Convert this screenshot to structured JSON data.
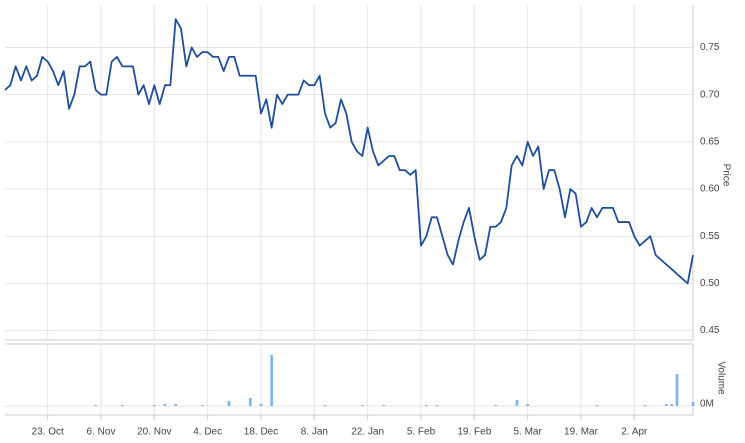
{
  "chart_data": {
    "type": "stock",
    "categories": [
      null,
      null,
      null,
      null,
      null,
      null,
      null,
      null,
      "23. Oct",
      null,
      null,
      null,
      null,
      null,
      null,
      null,
      null,
      null,
      "6. Nov",
      null,
      null,
      null,
      null,
      null,
      null,
      null,
      null,
      null,
      "20. Nov",
      null,
      null,
      null,
      null,
      null,
      null,
      null,
      null,
      null,
      "4. Dec",
      null,
      null,
      null,
      null,
      null,
      null,
      null,
      null,
      null,
      "18. Dec",
      null,
      null,
      null,
      null,
      null,
      null,
      null,
      null,
      null,
      "8. Jan",
      null,
      null,
      null,
      null,
      null,
      null,
      null,
      null,
      null,
      "22. Jan",
      null,
      null,
      null,
      null,
      null,
      null,
      null,
      null,
      null,
      "5. Feb",
      null,
      null,
      null,
      null,
      null,
      null,
      null,
      null,
      null,
      "19. Feb",
      null,
      null,
      null,
      null,
      null,
      null,
      null,
      null,
      null,
      "5. Mar",
      null,
      null,
      null,
      null,
      null,
      null,
      null,
      null,
      null,
      "19. Mar",
      null,
      null,
      null,
      null,
      null,
      null,
      null,
      null,
      null,
      "2. Apr",
      null,
      null,
      null,
      null,
      null,
      null,
      null,
      null,
      null,
      null,
      null
    ],
    "series": [
      {
        "name": "Price",
        "color": "#1f4e9a",
        "values": [
          0.705,
          0.71,
          0.73,
          0.715,
          0.73,
          0.715,
          0.72,
          0.74,
          0.735,
          0.725,
          0.71,
          0.725,
          0.685,
          0.7,
          0.73,
          0.73,
          0.735,
          0.705,
          0.7,
          0.7,
          0.735,
          0.74,
          0.73,
          0.73,
          0.73,
          0.7,
          0.71,
          0.69,
          0.71,
          0.69,
          0.71,
          0.71,
          0.78,
          0.77,
          0.73,
          0.75,
          0.74,
          0.745,
          0.745,
          0.74,
          0.74,
          0.725,
          0.74,
          0.74,
          0.72,
          0.72,
          0.72,
          0.72,
          0.68,
          0.695,
          0.665,
          0.7,
          0.69,
          0.7,
          0.7,
          0.7,
          0.715,
          0.71,
          0.71,
          0.72,
          0.68,
          0.665,
          0.67,
          0.695,
          0.68,
          0.65,
          0.64,
          0.635,
          0.665,
          0.64,
          0.625,
          0.63,
          0.635,
          0.635,
          0.62,
          0.62,
          0.615,
          0.62,
          0.54,
          0.55,
          0.57,
          0.57,
          0.55,
          0.53,
          0.52,
          0.545,
          0.565,
          0.58,
          0.55,
          0.525,
          0.53,
          0.56,
          0.56,
          0.565,
          0.58,
          0.625,
          0.635,
          0.625,
          0.65,
          0.635,
          0.645,
          0.6,
          0.62,
          0.62,
          0.6,
          0.57,
          0.6,
          0.595,
          0.56,
          0.565,
          0.58,
          0.57,
          0.58,
          0.58,
          0.58,
          0.565,
          0.565,
          0.565,
          0.55,
          0.54,
          0.545,
          0.55,
          0.53,
          0.525,
          0.52,
          0.515,
          0.51,
          0.505,
          0.5,
          0.53
        ]
      },
      {
        "name": "Volume",
        "color": "#7cb5ec",
        "axis": "y2",
        "values": [
          0,
          0,
          0,
          0,
          0,
          0,
          0,
          0,
          0,
          0,
          0,
          0,
          0,
          0,
          0,
          0,
          0,
          0.1,
          0,
          0,
          0,
          0,
          0.1,
          0,
          0,
          0,
          0,
          0,
          0.1,
          0,
          0.2,
          0,
          0.2,
          0,
          0,
          0,
          0,
          0.1,
          0,
          0,
          0,
          0,
          0.5,
          0,
          0,
          0,
          0.8,
          0,
          0.2,
          0,
          5.1,
          0,
          0,
          0,
          0,
          0,
          0,
          0,
          0,
          0,
          0.1,
          0,
          0,
          0,
          0,
          0,
          0,
          0.1,
          0,
          0,
          0,
          0.1,
          0,
          0,
          0,
          0,
          0,
          0,
          0,
          0.1,
          0,
          0.1,
          0,
          0,
          0,
          0,
          0,
          0,
          0,
          0,
          0,
          0,
          0.1,
          0,
          0,
          0,
          0.6,
          0,
          0.2,
          0,
          0,
          0,
          0,
          0,
          0,
          0,
          0,
          0,
          0,
          0,
          0,
          0.1,
          0,
          0,
          0,
          0,
          0,
          0,
          0,
          0,
          0.1,
          0,
          0,
          0,
          0.2,
          0.2,
          3.2,
          0,
          0,
          0.4
        ]
      }
    ],
    "ylim": [
      0.44,
      0.795
    ],
    "yticks": [
      0.45,
      {
        "value": 0.5,
        "label": "0.50"
      },
      0.55,
      {
        "value": 0.6,
        "label": "0.60"
      },
      0.65,
      {
        "value": 0.7,
        "label": "0.70"
      },
      0.75
    ],
    "y2lim": [
      0,
      6
    ],
    "y2ticks": [
      {
        "value": 0,
        "label": "0M"
      }
    ],
    "grid": true
  }
}
